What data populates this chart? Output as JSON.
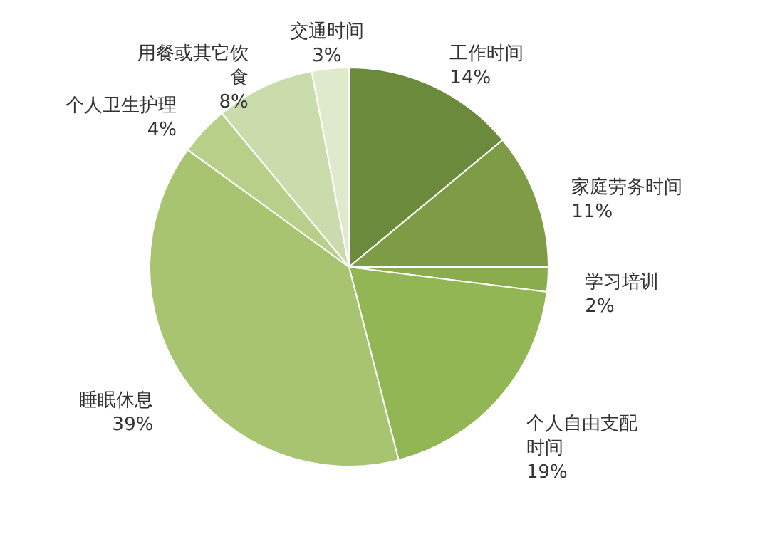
{
  "chart_data": {
    "type": "pie",
    "categories": [
      "工作时间",
      "家庭劳务时间",
      "学习培训",
      "个人自由支配时间",
      "睡眠休息",
      "个人卫生护理",
      "用餐或其它饮食",
      "交通时间"
    ],
    "values": [
      14,
      11,
      2,
      19,
      39,
      4,
      8,
      3
    ],
    "value_labels": [
      "14%",
      "11%",
      "2%",
      "19%",
      "39%",
      "4%",
      "8%",
      "3%"
    ],
    "colors": [
      "#6b8a3c",
      "#7d9c45",
      "#8aac4c",
      "#93b655",
      "#a9c470",
      "#b8cf8a",
      "#cadcab",
      "#dfe9cc"
    ]
  }
}
